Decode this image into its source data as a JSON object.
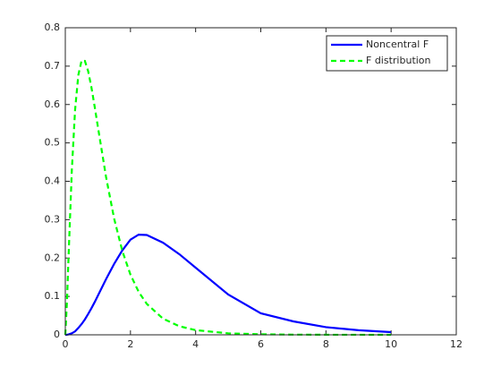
{
  "chart_data": {
    "type": "line",
    "x": [
      0,
      0.05,
      0.1,
      0.2,
      0.3,
      0.4,
      0.5,
      0.6,
      0.7,
      0.8,
      0.9,
      1,
      1.25,
      1.5,
      1.75,
      2,
      2.25,
      2.5,
      3,
      3.5,
      4,
      5,
      6,
      7,
      8,
      9,
      10
    ],
    "series": [
      {
        "name": "Noncentral F",
        "color": "#0000ff",
        "dash": "solid",
        "values": [
          0,
          0.0002,
          0.001,
          0.004,
          0.009,
          0.018,
          0.028,
          0.04,
          0.054,
          0.069,
          0.085,
          0.102,
          0.145,
          0.185,
          0.22,
          0.248,
          0.261,
          0.26,
          0.24,
          0.21,
          0.175,
          0.105,
          0.056,
          0.035,
          0.02,
          0.012,
          0.007
        ]
      },
      {
        "name": "F distribution",
        "color": "#00ff00",
        "dash": "dashed",
        "values": [
          0,
          0.0843,
          0.2046,
          0.4282,
          0.586,
          0.677,
          0.7146,
          0.7137,
          0.6873,
          0.6455,
          0.595,
          0.5418,
          0.4114,
          0.3023,
          0.2185,
          0.1567,
          0.1122,
          0.0806,
          0.042,
          0.0223,
          0.0122,
          0.0039,
          0.0014,
          0.0005,
          0.0002,
          0.0001,
          0
        ]
      }
    ],
    "xlim": [
      0,
      12
    ],
    "xticks": [
      0,
      2,
      4,
      6,
      8,
      10,
      12
    ],
    "ylim": [
      0,
      0.8
    ],
    "yticks": [
      0,
      0.1,
      0.2,
      0.3,
      0.4,
      0.5,
      0.6,
      0.7,
      0.8
    ],
    "legend": "upper right"
  }
}
